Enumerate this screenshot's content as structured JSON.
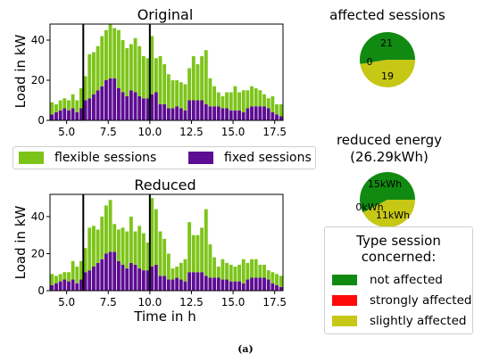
{
  "caption": "(a)",
  "colors": {
    "flexible": "#7dc41a",
    "fixed": "#5d0d92",
    "not_affected": "#118a11",
    "strongly": "#ff0a0a",
    "slightly": "#c7c716",
    "vline": "#000000"
  },
  "legend": {
    "flexible_label": "flexible sessions",
    "fixed_label": "fixed sessions"
  },
  "type_legend": {
    "title_line1": "Type session",
    "title_line2": "concerned:",
    "items": [
      "not affected",
      "strongly affected",
      "slightly affected"
    ]
  },
  "chart_data": [
    {
      "type": "bar",
      "stacked": true,
      "title": "Original",
      "xlabel": "",
      "ylabel": "Load in kW",
      "xlim": [
        4,
        18
      ],
      "ylim": [
        0,
        48
      ],
      "xticks": [
        "5.0",
        "7.5",
        "10.0",
        "12.5",
        "15.0",
        "17.5"
      ],
      "yticks": [
        "0",
        "20",
        "40"
      ],
      "vlines": [
        6,
        10
      ],
      "x": [
        4.0,
        4.25,
        4.5,
        4.75,
        5.0,
        5.25,
        5.5,
        5.75,
        6.0,
        6.25,
        6.5,
        6.75,
        7.0,
        7.25,
        7.5,
        7.75,
        8.0,
        8.25,
        8.5,
        8.75,
        9.0,
        9.25,
        9.5,
        9.75,
        10.0,
        10.25,
        10.5,
        10.75,
        11.0,
        11.25,
        11.5,
        11.75,
        12.0,
        12.25,
        12.5,
        12.75,
        13.0,
        13.25,
        13.5,
        13.75,
        14.0,
        14.25,
        14.5,
        14.75,
        15.0,
        15.25,
        15.5,
        15.75,
        16.0,
        16.25,
        16.5,
        16.75,
        17.0,
        17.25,
        17.5,
        17.75
      ],
      "series": [
        {
          "name": "fixed sessions",
          "values": [
            3,
            4,
            5,
            6,
            5,
            6,
            4,
            6,
            10,
            11,
            13,
            15,
            17,
            20,
            21,
            21,
            16,
            14,
            12,
            15,
            14,
            12,
            11,
            11,
            13,
            14,
            8,
            8,
            6,
            6,
            7,
            6,
            5,
            10,
            10,
            10,
            10,
            8,
            7,
            7,
            7,
            6,
            6,
            5,
            5,
            5,
            4,
            6,
            7,
            7,
            7,
            7,
            6,
            4,
            3,
            2
          ]
        },
        {
          "name": "flexible sessions",
          "values": [
            6,
            4,
            5,
            5,
            5,
            7,
            6,
            10,
            12,
            22,
            21,
            22,
            25,
            25,
            27,
            25,
            29,
            26,
            24,
            23,
            27,
            25,
            21,
            20,
            29,
            17,
            24,
            20,
            17,
            14,
            13,
            13,
            13,
            16,
            22,
            18,
            22,
            27,
            14,
            10,
            7,
            6,
            8,
            9,
            12,
            9,
            11,
            9,
            10,
            9,
            8,
            6,
            5,
            8,
            5,
            6
          ]
        }
      ]
    },
    {
      "type": "bar",
      "stacked": true,
      "title": "Reduced",
      "xlabel": "Time in h",
      "ylabel": "Load in kW",
      "xlim": [
        4,
        18
      ],
      "ylim": [
        0,
        52
      ],
      "xticks": [
        "5.0",
        "7.5",
        "10.0",
        "12.5",
        "15.0",
        "17.5"
      ],
      "yticks": [
        "0",
        "20",
        "40"
      ],
      "vlines": [
        6,
        10
      ],
      "x": [
        4.0,
        4.25,
        4.5,
        4.75,
        5.0,
        5.25,
        5.5,
        5.75,
        6.0,
        6.25,
        6.5,
        6.75,
        7.0,
        7.25,
        7.5,
        7.75,
        8.0,
        8.25,
        8.5,
        8.75,
        9.0,
        9.25,
        9.5,
        9.75,
        10.0,
        10.25,
        10.5,
        10.75,
        11.0,
        11.25,
        11.5,
        11.75,
        12.0,
        12.25,
        12.5,
        12.75,
        13.0,
        13.25,
        13.5,
        13.75,
        14.0,
        14.25,
        14.5,
        14.75,
        15.0,
        15.25,
        15.5,
        15.75,
        16.0,
        16.25,
        16.5,
        16.75,
        17.0,
        17.25,
        17.5,
        17.75
      ],
      "series": [
        {
          "name": "fixed sessions",
          "values": [
            3,
            4,
            5,
            6,
            5,
            6,
            4,
            6,
            10,
            11,
            13,
            15,
            17,
            20,
            21,
            21,
            16,
            14,
            12,
            15,
            14,
            12,
            11,
            11,
            13,
            14,
            8,
            8,
            6,
            6,
            7,
            6,
            5,
            10,
            10,
            10,
            10,
            8,
            7,
            7,
            7,
            6,
            6,
            5,
            5,
            5,
            4,
            6,
            7,
            7,
            7,
            7,
            6,
            4,
            3,
            2
          ]
        },
        {
          "name": "flexible sessions",
          "values": [
            6,
            4,
            4,
            4,
            5,
            10,
            9,
            10,
            13,
            23,
            22,
            18,
            23,
            26,
            28,
            15,
            17,
            20,
            20,
            25,
            18,
            23,
            20,
            15,
            37,
            30,
            24,
            20,
            14,
            6,
            6,
            9,
            12,
            27,
            20,
            20,
            24,
            36,
            18,
            11,
            6,
            11,
            9,
            9,
            8,
            9,
            13,
            9,
            10,
            10,
            7,
            7,
            5,
            6,
            6,
            6
          ]
        }
      ]
    },
    {
      "type": "pie",
      "title": "affected sessions",
      "values": [
        21,
        0,
        19
      ],
      "labels": [
        "21",
        "0",
        "19"
      ],
      "categories": [
        "not affected",
        "strongly affected",
        "slightly affected"
      ]
    },
    {
      "type": "pie",
      "title": "reduced energy",
      "subtitle": "(26.29kWh)",
      "values": [
        15,
        0,
        11
      ],
      "labels": [
        "15kWh",
        "0kWh",
        "11kWh"
      ],
      "categories": [
        "not affected",
        "strongly affected",
        "slightly affected"
      ]
    }
  ]
}
